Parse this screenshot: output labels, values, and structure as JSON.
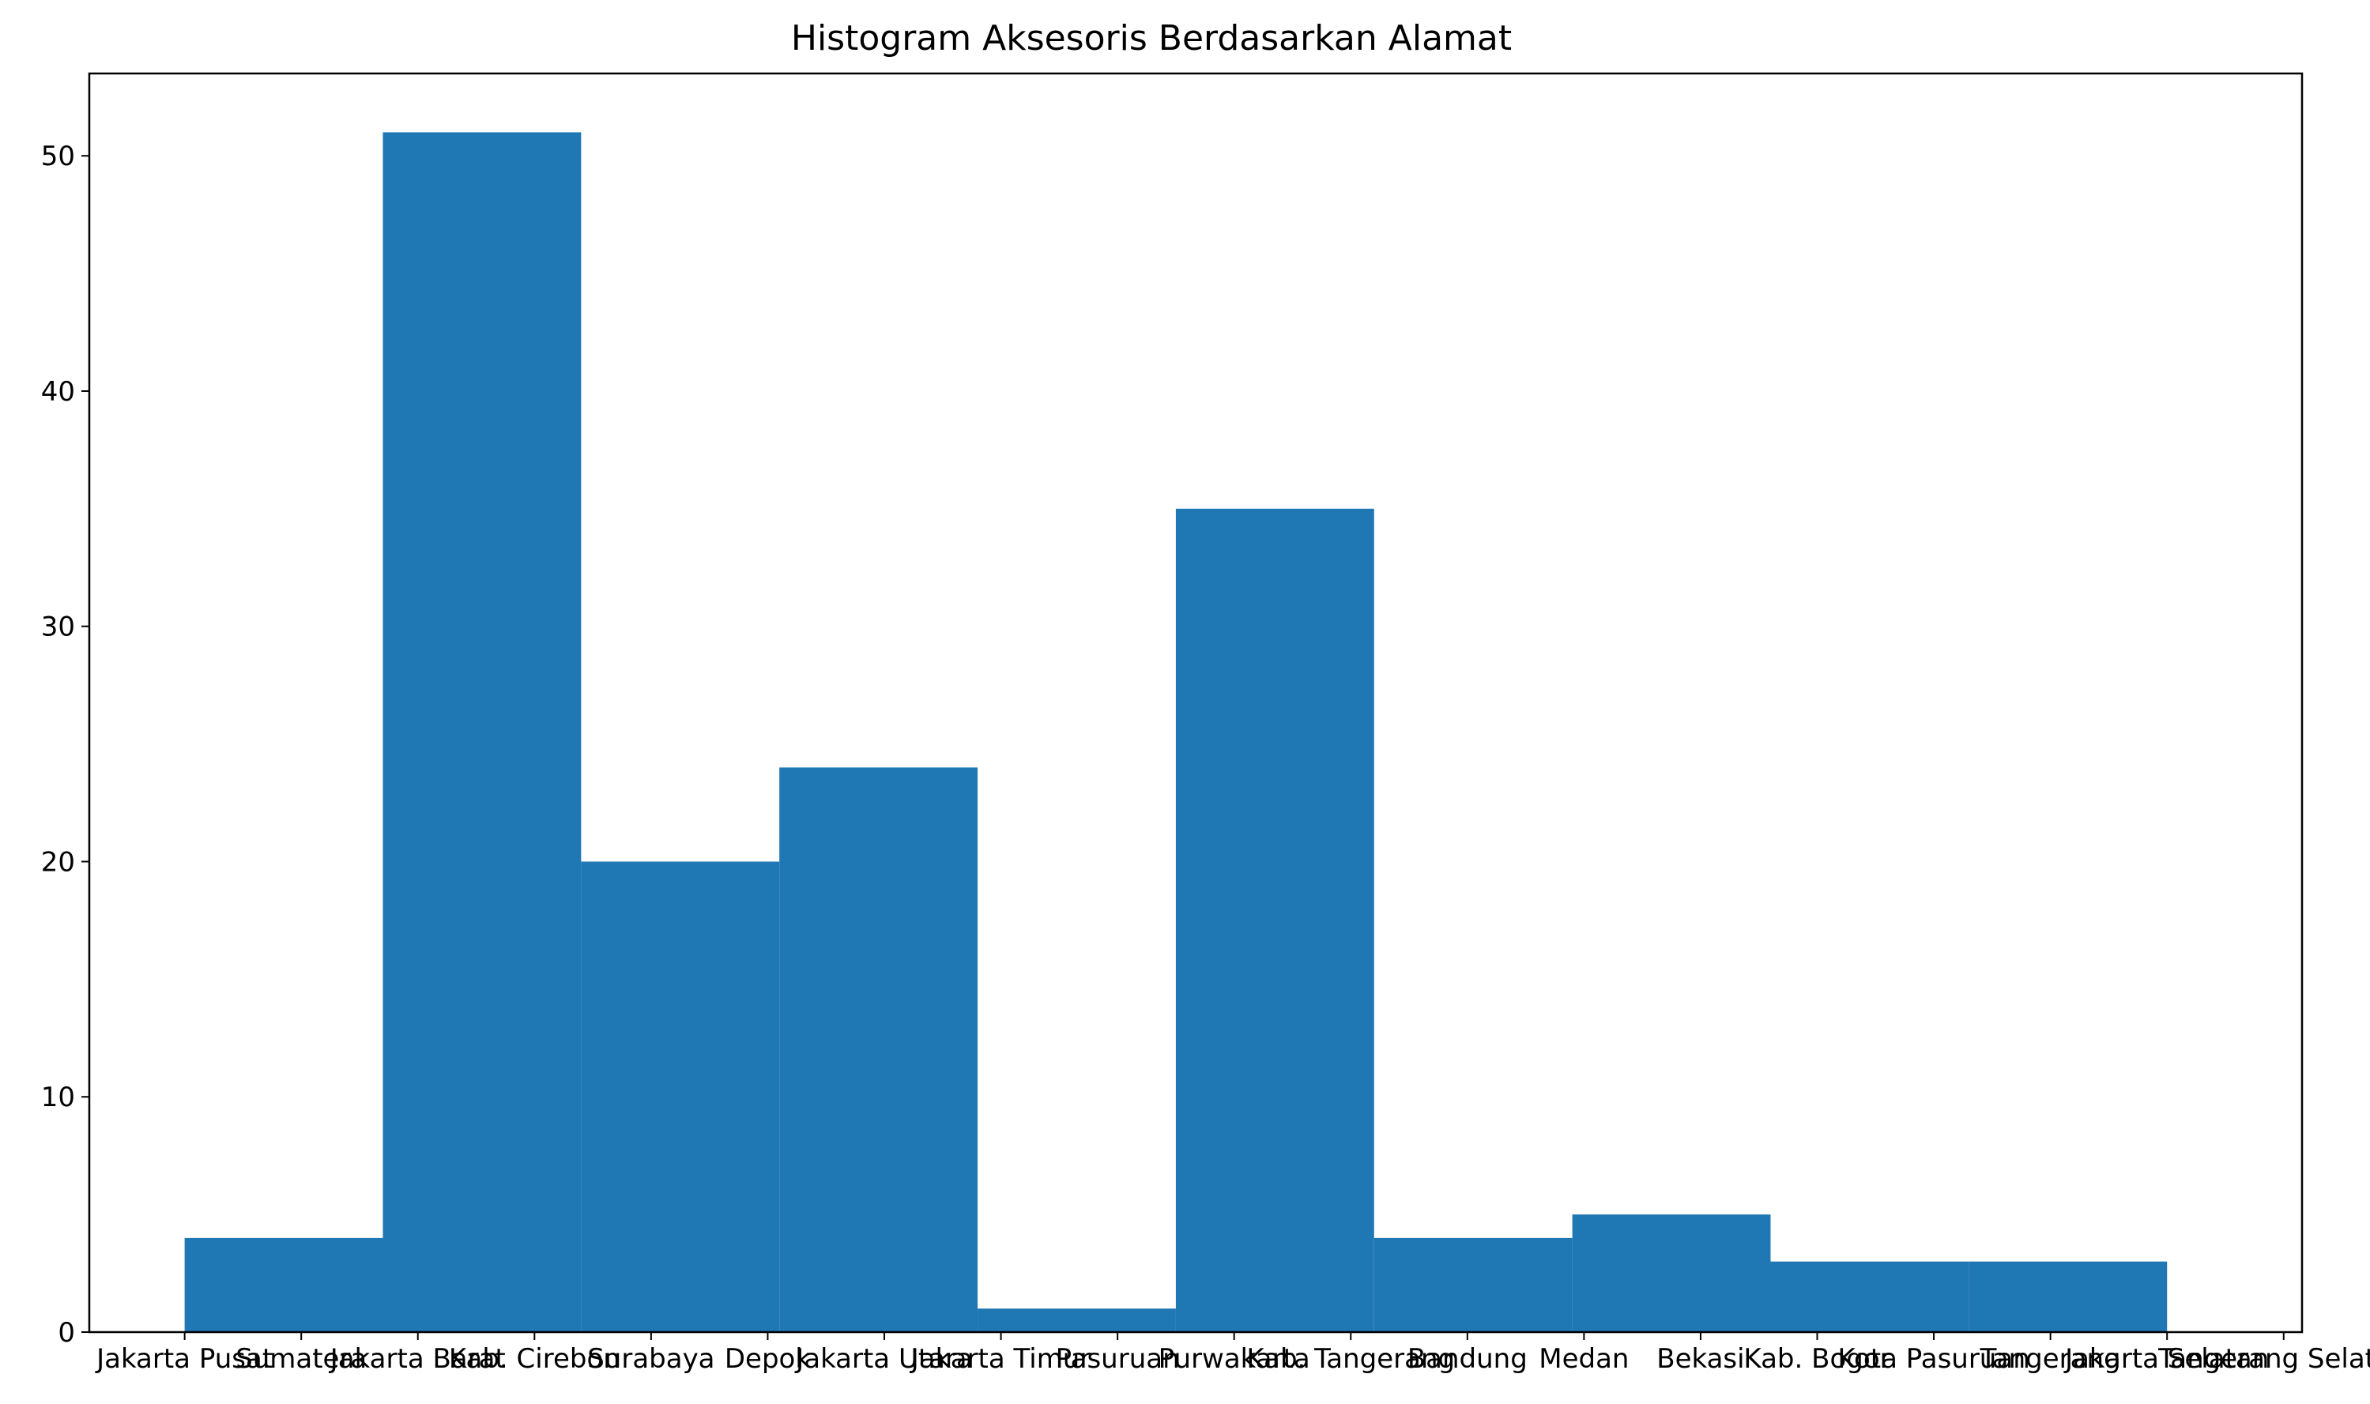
{
  "chart_data": {
    "type": "bar",
    "title": "Histogram Aksesoris Berdasarkan Alamat",
    "xlabel": "",
    "ylabel": "",
    "ylim": [
      0,
      53.5
    ],
    "xlim": [
      -0.8175,
      18.1575
    ],
    "yticks": [
      0,
      10,
      20,
      30,
      40,
      50
    ],
    "bar_color": "#1f77b4",
    "grid": false,
    "categories": [
      "Jakarta Pusat",
      "Sumatera",
      "Jakarta Barat",
      "Kab. Cirebon",
      "Surabaya",
      "Depok",
      "Jakarta Utara",
      "Jakarta Timur",
      "Pasuruan",
      "Purwakarta",
      "Kab. Tangerang",
      "Bandung",
      "Medan",
      "Bekasi",
      "Kab. Bogor",
      "Kota Pasuruan",
      "Tangerang",
      "Jakarta Selatan",
      "Tangerang Selatan"
    ],
    "bins": [
      {
        "x0": 0.0,
        "x1": 1.7,
        "value": 4
      },
      {
        "x0": 1.7,
        "x1": 3.4,
        "value": 51
      },
      {
        "x0": 3.4,
        "x1": 5.1,
        "value": 20
      },
      {
        "x0": 5.1,
        "x1": 6.8,
        "value": 24
      },
      {
        "x0": 6.8,
        "x1": 8.5,
        "value": 1
      },
      {
        "x0": 8.5,
        "x1": 10.2,
        "value": 35
      },
      {
        "x0": 10.2,
        "x1": 11.9,
        "value": 4
      },
      {
        "x0": 11.9,
        "x1": 13.6,
        "value": 5
      },
      {
        "x0": 13.6,
        "x1": 15.3,
        "value": 3
      },
      {
        "x0": 15.3,
        "x1": 17.0,
        "value": 3
      }
    ]
  }
}
